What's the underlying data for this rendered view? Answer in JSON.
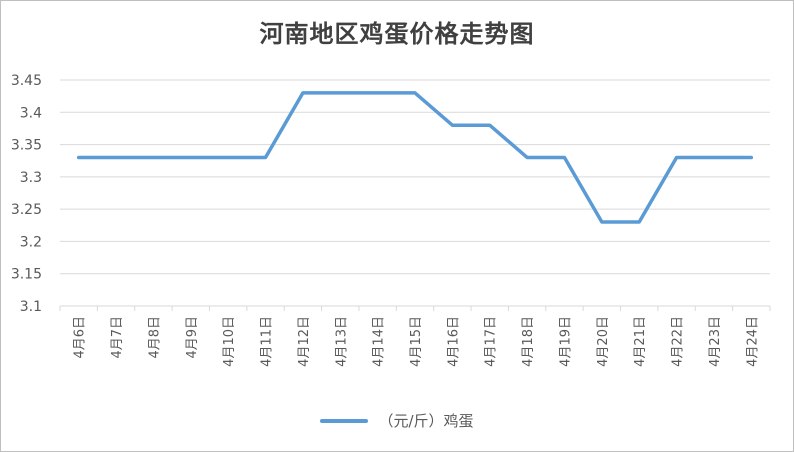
{
  "chart_data": {
    "type": "line",
    "title": "河南地区鸡蛋价格走势图",
    "xlabel": "",
    "ylabel": "",
    "categories": [
      "4月6日",
      "4月7日",
      "4月8日",
      "4月9日",
      "4月10日",
      "4月11日",
      "4月12日",
      "4月13日",
      "4月14日",
      "4月15日",
      "4月16日",
      "4月17日",
      "4月18日",
      "4月19日",
      "4月20日",
      "4月21日",
      "4月22日",
      "4月23日",
      "4月24日"
    ],
    "series": [
      {
        "name": "（元/斤）鸡蛋",
        "values": [
          3.33,
          3.33,
          3.33,
          3.33,
          3.33,
          3.33,
          3.43,
          3.43,
          3.43,
          3.43,
          3.38,
          3.38,
          3.33,
          3.33,
          3.23,
          3.23,
          3.33,
          3.33,
          3.33
        ]
      }
    ],
    "ylim": [
      3.1,
      3.45
    ],
    "yticks": [
      "3.1",
      "3.15",
      "3.2",
      "3.25",
      "3.3",
      "3.35",
      "3.4",
      "3.45"
    ],
    "grid": true,
    "legend": "bottom",
    "line_color": "#5b9bd5"
  }
}
